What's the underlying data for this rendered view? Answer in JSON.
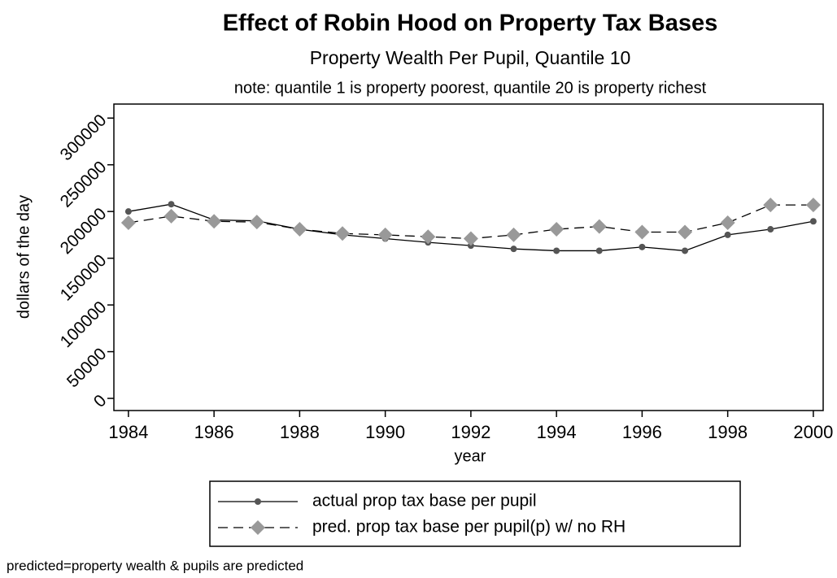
{
  "chart_data": {
    "type": "line",
    "title": "Effect of Robin Hood on Property Tax Bases",
    "subtitle": "Property Wealth Per Pupil, Quantile 10",
    "note": "note: quantile 1 is property poorest, quantile 20 is property richest",
    "x_label": "year",
    "y_label": "dollars of the day",
    "footnote": "predicted=property wealth & pupils are predicted",
    "x": [
      1984,
      1985,
      1986,
      1987,
      1988,
      1989,
      1990,
      1991,
      1992,
      1993,
      1994,
      1995,
      1996,
      1997,
      1998,
      1999,
      2000
    ],
    "series": [
      {
        "name": "actual prop tax base per pupil",
        "color": "#555555",
        "style": "solid",
        "values": [
          200000,
          207800,
          191000,
          190000,
          181000,
          175000,
          171000,
          167000,
          163500,
          160000,
          158000,
          158000,
          162000,
          158000,
          175000,
          181000,
          189500
        ]
      },
      {
        "name": "pred. prop tax base per pupil(p) w/ no RH",
        "color": "#999999",
        "style": "dashed",
        "values": [
          188000,
          195000,
          189500,
          188700,
          181000,
          176500,
          175000,
          173000,
          171000,
          175000,
          181000,
          184000,
          178000,
          178000,
          188000,
          207000,
          207000
        ]
      }
    ],
    "xlim": [
      1983.66,
      2000.23
    ],
    "xticks": [
      1984,
      1986,
      1988,
      1990,
      1992,
      1994,
      1996,
      1998,
      2000
    ],
    "ylim": [
      -13000,
      315000
    ],
    "yticks": [
      0,
      50000,
      100000,
      150000,
      200000,
      250000,
      300000
    ],
    "grid": false
  }
}
